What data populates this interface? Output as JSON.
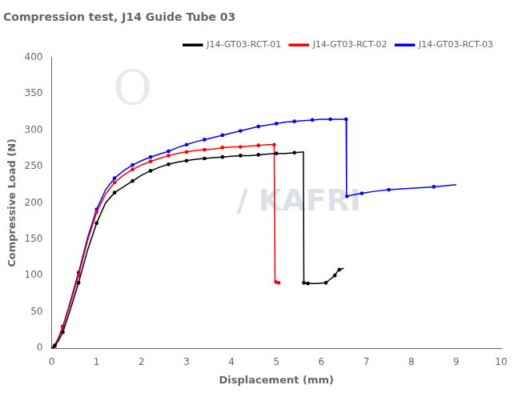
{
  "chart_data": {
    "type": "line",
    "title": "Compression test, J14 Guide Tube 03",
    "xlabel": "Displacement (mm)",
    "ylabel": "Compressive Load (N)",
    "xlim": [
      0,
      10
    ],
    "ylim": [
      0,
      400
    ],
    "xticks": [
      0,
      1,
      2,
      3,
      4,
      5,
      6,
      7,
      8,
      9,
      10
    ],
    "yticks": [
      0,
      50,
      100,
      150,
      200,
      250,
      300,
      350,
      400
    ],
    "grid": false,
    "legend": "upper right",
    "marker": "dot",
    "line_style": "solid",
    "annotations": [
      "/ KAFRI",
      "O"
    ],
    "series": [
      {
        "name": "J14-GT03-RCT-01",
        "color": "black",
        "x": [
          0,
          0.03,
          0.07,
          0.15,
          0.25,
          0.4,
          0.6,
          0.8,
          1.0,
          1.2,
          1.4,
          1.6,
          1.8,
          2.0,
          2.2,
          2.4,
          2.6,
          2.8,
          3.0,
          3.2,
          3.4,
          3.6,
          3.8,
          4.0,
          4.2,
          4.4,
          4.6,
          4.8,
          5.0,
          5.2,
          5.4,
          5.6,
          5.61,
          5.62,
          5.7,
          5.9,
          6.1,
          6.2,
          6.3,
          6.35,
          6.4,
          6.5
        ],
        "values": [
          0,
          1,
          3,
          10,
          22,
          50,
          90,
          135,
          172,
          200,
          214,
          222,
          230,
          238,
          244,
          249,
          253,
          256,
          258,
          260,
          261,
          262,
          263,
          264,
          265,
          265,
          266,
          267,
          268,
          268,
          269,
          270,
          90,
          89,
          89,
          89,
          90,
          95,
          100,
          105,
          108,
          110
        ]
      },
      {
        "name": "J14-GT03-RCT-02",
        "color": "red",
        "x": [
          0,
          0.03,
          0.07,
          0.15,
          0.25,
          0.4,
          0.6,
          0.8,
          1.0,
          1.2,
          1.4,
          1.6,
          1.8,
          2.0,
          2.2,
          2.4,
          2.6,
          2.8,
          3.0,
          3.2,
          3.4,
          3.6,
          3.8,
          4.0,
          4.2,
          4.4,
          4.6,
          4.8,
          4.95,
          4.97,
          4.99,
          5.02,
          5.05
        ],
        "values": [
          0,
          1,
          4,
          13,
          28,
          58,
          100,
          148,
          187,
          212,
          228,
          238,
          246,
          252,
          257,
          261,
          265,
          268,
          270,
          272,
          273,
          274,
          276,
          277,
          277,
          278,
          279,
          280,
          280,
          92,
          91,
          90,
          90
        ]
      },
      {
        "name": "J14-GT03-RCT-03",
        "color": "blue",
        "x": [
          0,
          0.03,
          0.07,
          0.15,
          0.25,
          0.4,
          0.6,
          0.8,
          1.0,
          1.2,
          1.4,
          1.6,
          1.8,
          2.0,
          2.2,
          2.4,
          2.6,
          2.8,
          3.0,
          3.2,
          3.4,
          3.6,
          3.8,
          4.0,
          4.2,
          4.4,
          4.6,
          4.8,
          5.0,
          5.2,
          5.4,
          5.6,
          5.8,
          6.0,
          6.2,
          6.4,
          6.55,
          6.56,
          6.57,
          6.7,
          6.9,
          7.2,
          7.5,
          8.0,
          8.5,
          9.0
        ],
        "values": [
          0,
          1,
          4,
          14,
          30,
          61,
          104,
          152,
          191,
          218,
          234,
          244,
          252,
          258,
          263,
          267,
          271,
          276,
          280,
          284,
          287,
          290,
          293,
          296,
          299,
          302,
          305,
          307,
          309,
          311,
          312,
          313,
          314,
          315,
          315,
          315,
          315,
          210,
          209,
          211,
          213,
          216,
          218,
          220,
          222,
          225
        ]
      }
    ]
  }
}
